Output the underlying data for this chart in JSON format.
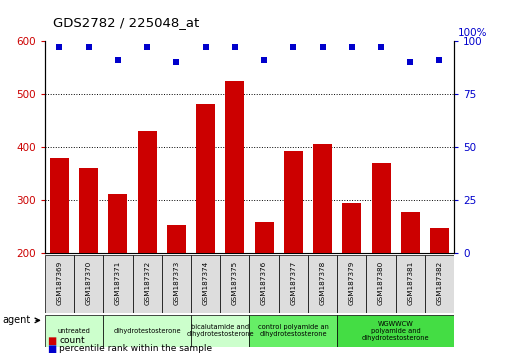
{
  "title": "GDS2782 / 225048_at",
  "samples": [
    "GSM187369",
    "GSM187370",
    "GSM187371",
    "GSM187372",
    "GSM187373",
    "GSM187374",
    "GSM187375",
    "GSM187376",
    "GSM187377",
    "GSM187378",
    "GSM187379",
    "GSM187380",
    "GSM187381",
    "GSM187382"
  ],
  "counts": [
    380,
    360,
    312,
    430,
    252,
    480,
    525,
    258,
    393,
    405,
    295,
    370,
    278,
    247
  ],
  "percentiles": [
    97,
    97,
    91,
    97,
    90,
    97,
    97,
    91,
    97,
    97,
    97,
    97,
    90,
    91
  ],
  "ylim_left": [
    200,
    600
  ],
  "ylim_right": [
    0,
    100
  ],
  "yticks_left": [
    200,
    300,
    400,
    500,
    600
  ],
  "yticks_right": [
    0,
    25,
    50,
    75,
    100
  ],
  "bar_color": "#cc0000",
  "dot_color": "#0000cc",
  "groups": [
    {
      "label": "untreated",
      "indices": [
        0,
        1
      ],
      "color": "#ccffcc"
    },
    {
      "label": "dihydrotestosterone",
      "indices": [
        2,
        3,
        4
      ],
      "color": "#ccffcc"
    },
    {
      "label": "bicalutamide and\ndihydrotestosterone",
      "indices": [
        5,
        6
      ],
      "color": "#ccffcc"
    },
    {
      "label": "control polyamide an\ndihydrotestosterone",
      "indices": [
        7,
        8,
        9
      ],
      "color": "#66ee66"
    },
    {
      "label": "WGWWCW\npolyamide and\ndihydrotestosterone",
      "indices": [
        10,
        11,
        12,
        13
      ],
      "color": "#44dd44"
    }
  ],
  "gsm_bg": "#dddddd",
  "legend_count_color": "#cc0000",
  "legend_pct_color": "#0000cc",
  "bg_color": "#ffffff",
  "tick_label_color_left": "#cc0000",
  "tick_label_color_right": "#0000cc"
}
